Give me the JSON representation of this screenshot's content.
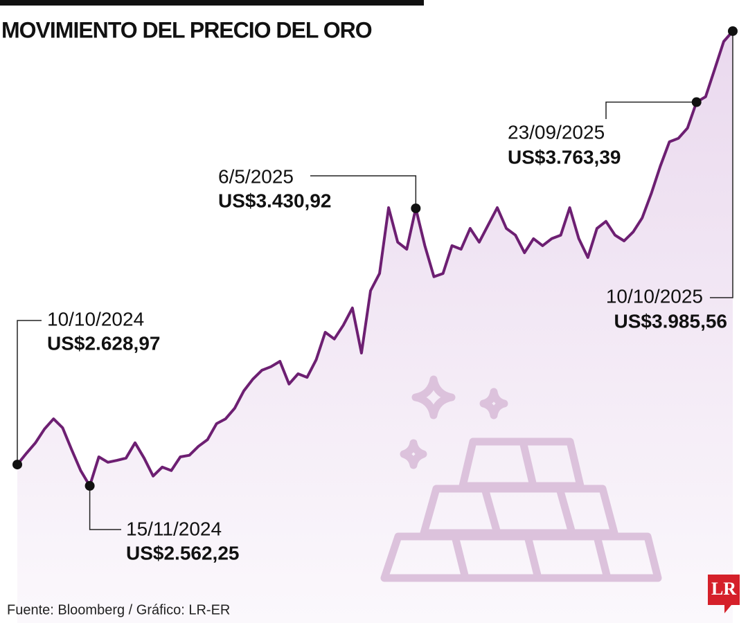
{
  "chart_data": {
    "type": "line",
    "title": "MOVIMIENTO DEL PRECIO DEL ORO",
    "source": "Fuente: Bloomberg / Gráfico: LR-ER",
    "logo": "LR",
    "color": "#6d1f72",
    "categories": [
      "10/10/2024",
      null,
      null,
      null,
      null,
      null,
      null,
      null,
      "15/11/2024",
      null,
      null,
      null,
      null,
      null,
      null,
      null,
      null,
      null,
      null,
      null,
      null,
      null,
      null,
      null,
      null,
      null,
      null,
      null,
      null,
      null,
      null,
      null,
      null,
      null,
      null,
      null,
      null,
      null,
      null,
      null,
      null,
      null,
      null,
      null,
      "6/5/2025",
      null,
      null,
      null,
      null,
      null,
      null,
      null,
      null,
      null,
      null,
      null,
      null,
      null,
      null,
      null,
      null,
      null,
      null,
      null,
      null,
      null,
      null,
      null,
      null,
      null,
      null,
      null,
      null,
      null,
      null,
      "23/09/2025",
      null,
      null,
      null,
      "10/10/2025"
    ],
    "values": [
      2628.97,
      2664,
      2697,
      2740,
      2772,
      2744,
      2675,
      2610,
      2562.25,
      2653,
      2636,
      2642,
      2649,
      2697,
      2649,
      2593,
      2621,
      2610,
      2653,
      2658,
      2686,
      2707,
      2757,
      2772,
      2805,
      2859,
      2896,
      2924,
      2935,
      2952,
      2881,
      2913,
      2902,
      2957,
      3043,
      3022,
      3065,
      3119,
      2978,
      3173,
      3227,
      3433,
      3325,
      3303,
      3430.92,
      3314,
      3217,
      3227,
      3314,
      3303,
      3368,
      3325,
      3379,
      3433,
      3368,
      3347,
      3292,
      3336,
      3314,
      3336,
      3347,
      3433,
      3336,
      3277,
      3368,
      3390,
      3347,
      3329,
      3357,
      3401,
      3477,
      3563,
      3639,
      3650,
      3682,
      3763.39,
      3780,
      3866,
      3953,
      3985.56
    ],
    "value_labels": [
      "US$2.628,97",
      null,
      null,
      null,
      null,
      null,
      null,
      null,
      "US$2.562,25",
      null,
      null,
      null,
      null,
      null,
      null,
      null,
      null,
      null,
      null,
      null,
      null,
      null,
      null,
      null,
      null,
      null,
      null,
      null,
      null,
      null,
      null,
      null,
      null,
      null,
      null,
      null,
      null,
      null,
      null,
      null,
      null,
      null,
      null,
      null,
      "US$3.430,92",
      null,
      null,
      null,
      null,
      null,
      null,
      null,
      null,
      null,
      null,
      null,
      null,
      null,
      null,
      null,
      null,
      null,
      null,
      null,
      null,
      null,
      null,
      null,
      null,
      null,
      null,
      null,
      null,
      null,
      null,
      "US$3.763,39",
      null,
      null,
      null,
      "US$3.985,56"
    ],
    "ylim": [
      2133,
      4083
    ]
  }
}
